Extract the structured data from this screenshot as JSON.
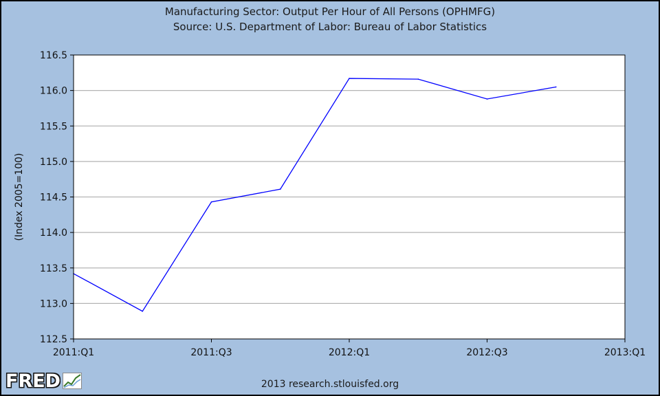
{
  "chart_data": {
    "type": "line",
    "title": "Manufacturing Sector: Output Per Hour of All Persons (OPHMFG)",
    "subtitle": "Source: U.S. Department of Labor: Bureau of Labor Statistics",
    "ylabel": "(Index 2005=100)",
    "xlabel": "",
    "x": [
      "2011:Q1",
      "2011:Q2",
      "2011:Q3",
      "2011:Q4",
      "2012:Q1",
      "2012:Q2",
      "2012:Q3",
      "2012:Q4"
    ],
    "series": [
      {
        "values": [
          113.42,
          112.89,
          114.43,
          114.61,
          116.17,
          116.16,
          115.88,
          116.05
        ]
      }
    ],
    "x_ticks": [
      "2011:Q1",
      "2011:Q3",
      "2012:Q1",
      "2012:Q3",
      "2013:Q1"
    ],
    "x_range": [
      "2011:Q1",
      "2013:Q1"
    ],
    "y_ticks": [
      "112.5",
      "113.0",
      "113.5",
      "114.0",
      "114.5",
      "115.0",
      "115.5",
      "116.0",
      "116.5"
    ],
    "ylim": [
      112.5,
      116.5
    ],
    "grid": "horizontal",
    "colors": {
      "line": "#0000ff",
      "background": "#a6c1e0",
      "plot_area": "#ffffff",
      "grid": "#b4b4b4"
    }
  },
  "footer": {
    "logo_text": "FRED",
    "logo_icon": "fred-chart-icon",
    "copyright": "2013 research.stlouisfed.org"
  }
}
